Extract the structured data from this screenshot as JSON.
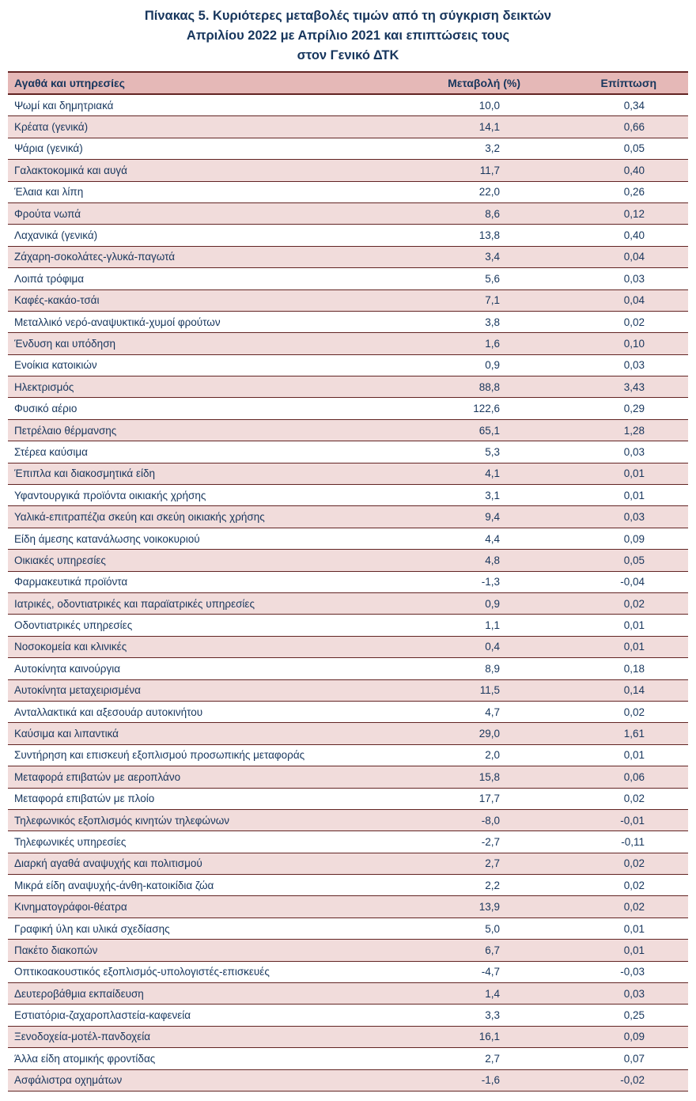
{
  "title": {
    "line1": "Πίνακας 5. Κυριότερες μεταβολές τιμών από τη σύγκριση δεικτών",
    "line2": "Απριλίου 2022 με Απρίλιο 2021 και επιπτώσεις τους",
    "line3": "στον Γενικό ΔΤΚ"
  },
  "colors": {
    "header_bg": "#e5b8b7",
    "row_alt_bg": "#f1dcdb",
    "border": "#622423",
    "text": "#17365d"
  },
  "table": {
    "columns": [
      "Αγαθά και υπηρεσίες",
      "Μεταβολή (%)",
      "Επίπτωση"
    ],
    "rows": [
      {
        "label": "Ψωμί και δημητριακά",
        "change": "10,0",
        "impact": "0,34"
      },
      {
        "label": "Κρέατα (γενικά)",
        "change": "14,1",
        "impact": "0,66"
      },
      {
        "label": "Ψάρια (γενικά)",
        "change": "3,2",
        "impact": "0,05"
      },
      {
        "label": "Γαλακτοκομικά και αυγά",
        "change": "11,7",
        "impact": "0,40"
      },
      {
        "label": "Έλαια και λίπη",
        "change": "22,0",
        "impact": "0,26"
      },
      {
        "label": "Φρούτα νωπά",
        "change": "8,6",
        "impact": "0,12"
      },
      {
        "label": "Λαχανικά (γενικά)",
        "change": "13,8",
        "impact": "0,40"
      },
      {
        "label": "Ζάχαρη-σοκολάτες-γλυκά-παγωτά",
        "change": "3,4",
        "impact": "0,04"
      },
      {
        "label": "Λοιπά τρόφιμα",
        "change": "5,6",
        "impact": "0,03"
      },
      {
        "label": "Καφές-κακάο-τσάι",
        "change": "7,1",
        "impact": "0,04"
      },
      {
        "label": "Μεταλλικό νερό-αναψυκτικά-χυμοί φρούτων",
        "change": "3,8",
        "impact": "0,02"
      },
      {
        "label": "Ένδυση και υπόδηση",
        "change": "1,6",
        "impact": "0,10"
      },
      {
        "label": "Ενοίκια κατοικιών",
        "change": "0,9",
        "impact": "0,03"
      },
      {
        "label": "Ηλεκτρισμός",
        "change": "88,8",
        "impact": "3,43"
      },
      {
        "label": "Φυσικό αέριο",
        "change": "122,6",
        "impact": "0,29"
      },
      {
        "label": "Πετρέλαιο θέρμανσης",
        "change": "65,1",
        "impact": "1,28"
      },
      {
        "label": "Στέρεα καύσιμα",
        "change": "5,3",
        "impact": "0,03"
      },
      {
        "label": "Έπιπλα και διακοσμητικά είδη",
        "change": "4,1",
        "impact": "0,01"
      },
      {
        "label": "Υφαντουργικά προϊόντα οικιακής χρήσης",
        "change": "3,1",
        "impact": "0,01"
      },
      {
        "label": "Υαλικά-επιτραπέζια σκεύη και σκεύη οικιακής χρήσης",
        "change": "9,4",
        "impact": "0,03"
      },
      {
        "label": "Είδη άμεσης κατανάλωσης νοικοκυριού",
        "change": "4,4",
        "impact": "0,09"
      },
      {
        "label": "Οικιακές υπηρεσίες",
        "change": "4,8",
        "impact": "0,05"
      },
      {
        "label": "Φαρμακευτικά προϊόντα",
        "change": "-1,3",
        "impact": "-0,04"
      },
      {
        "label": "Ιατρικές, οδοντιατρικές και παραϊατρικές υπηρεσίες",
        "change": "0,9",
        "impact": "0,02"
      },
      {
        "label": "Οδοντιατρικές υπηρεσίες",
        "change": "1,1",
        "impact": "0,01"
      },
      {
        "label": "Νοσοκομεία και κλινικές",
        "change": "0,4",
        "impact": "0,01"
      },
      {
        "label": "Αυτοκίνητα καινούργια",
        "change": "8,9",
        "impact": "0,18"
      },
      {
        "label": "Αυτοκίνητα μεταχειρισμένα",
        "change": "11,5",
        "impact": "0,14"
      },
      {
        "label": "Ανταλλακτικά και αξεσουάρ αυτοκινήτου",
        "change": "4,7",
        "impact": "0,02"
      },
      {
        "label": "Καύσιμα και λιπαντικά",
        "change": "29,0",
        "impact": "1,61"
      },
      {
        "label": "Συντήρηση και επισκευή εξοπλισμού προσωπικής μεταφοράς",
        "change": "2,0",
        "impact": "0,01"
      },
      {
        "label": "Μεταφορά επιβατών με αεροπλάνο",
        "change": "15,8",
        "impact": "0,06"
      },
      {
        "label": "Μεταφορά επιβατών με πλοίο",
        "change": "17,7",
        "impact": "0,02"
      },
      {
        "label": "Τηλεφωνικός εξοπλισμός κινητών τηλεφώνων",
        "change": "-8,0",
        "impact": "-0,01"
      },
      {
        "label": "Τηλεφωνικές υπηρεσίες",
        "change": "-2,7",
        "impact": "-0,11"
      },
      {
        "label": "Διαρκή αγαθά αναψυχής και πολιτισμού",
        "change": "2,7",
        "impact": "0,02"
      },
      {
        "label": "Μικρά είδη αναψυχής-άνθη-κατοικίδια ζώα",
        "change": "2,2",
        "impact": "0,02"
      },
      {
        "label": "Κινηματογράφοι-θέατρα",
        "change": "13,9",
        "impact": "0,02"
      },
      {
        "label": "Γραφική ύλη και υλικά σχεδίασης",
        "change": "5,0",
        "impact": "0,01"
      },
      {
        "label": "Πακέτο διακοπών",
        "change": "6,7",
        "impact": "0,01"
      },
      {
        "label": "Οπτικοακουστικός εξοπλισμός-υπολογιστές-επισκευές",
        "change": "-4,7",
        "impact": "-0,03"
      },
      {
        "label": "Δευτεροβάθμια εκπαίδευση",
        "change": "1,4",
        "impact": "0,03"
      },
      {
        "label": "Εστιατόρια-ζαχαροπλαστεία-καφενεία",
        "change": "3,3",
        "impact": "0,25"
      },
      {
        "label": "Ξενοδοχεία-μοτέλ-πανδοχεία",
        "change": "16,1",
        "impact": "0,09"
      },
      {
        "label": "Άλλα είδη ατομικής φροντίδας",
        "change": "2,7",
        "impact": "0,07"
      },
      {
        "label": "Ασφάλιστρα οχημάτων",
        "change": "-1,6",
        "impact": "-0,02"
      }
    ]
  }
}
